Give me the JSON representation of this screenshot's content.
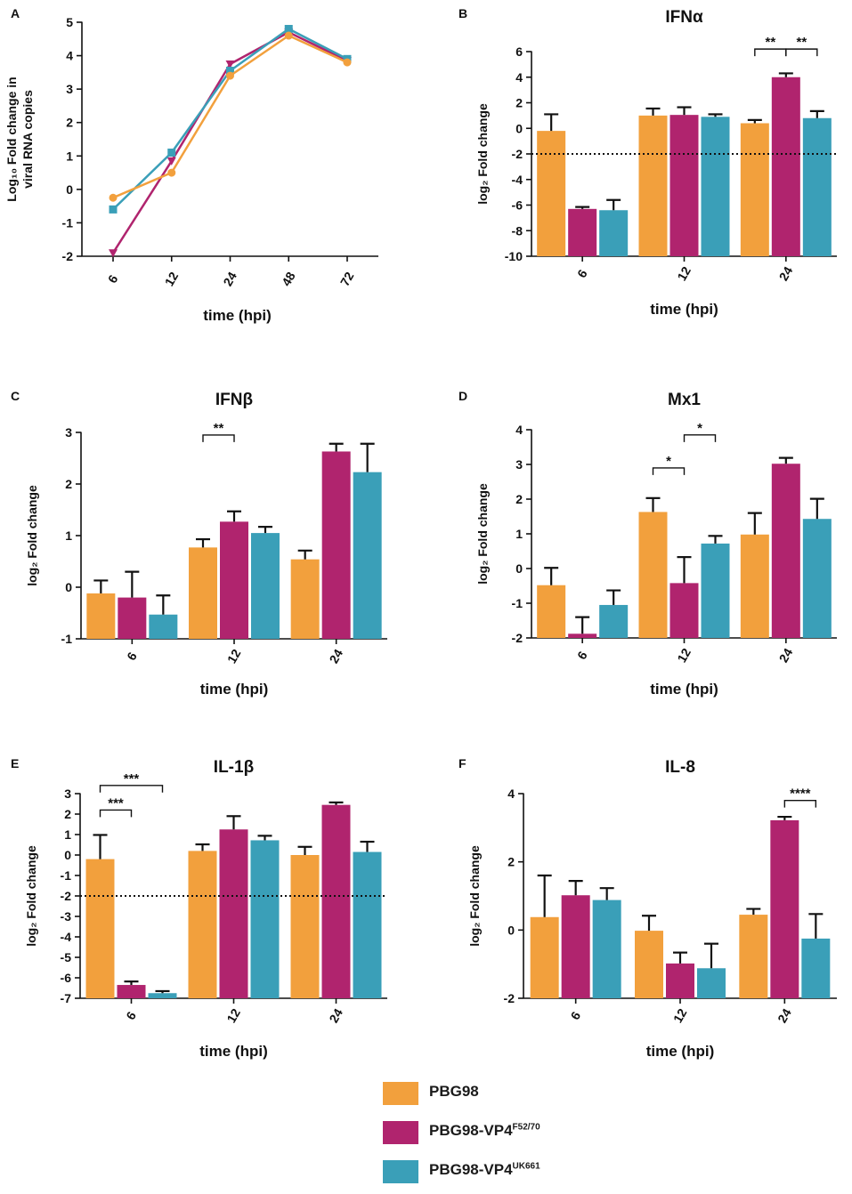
{
  "colors": {
    "PBG98": "#F2A03D",
    "PBG98-VP4F52/70": "#B0246E",
    "PBG98-VP4UK661": "#3A9FB8"
  },
  "legend": {
    "items": [
      {
        "series": "PBG98",
        "base": "PBG98",
        "sup": ""
      },
      {
        "series": "PBG98-VP4F52/70",
        "base": "PBG98-VP4",
        "sup": "F52/70"
      },
      {
        "series": "PBG98-VP4UK661",
        "base": "PBG98-VP4",
        "sup": "UK661"
      }
    ]
  },
  "chart_data": [
    {
      "panel": "A",
      "type": "line",
      "title": "",
      "xlabel": "time (hpi)",
      "ylabel_line1": "Log₁₀ Fold change in",
      "ylabel_line2": "viral RNA copies",
      "categories": [
        "6",
        "12",
        "24",
        "48",
        "72"
      ],
      "ylim": [
        -2,
        5
      ],
      "yticks": [
        -2,
        -1,
        0,
        1,
        2,
        3,
        4,
        5
      ],
      "series": [
        {
          "name": "PBG98-VP4F52/70",
          "marker": "triangle-down",
          "values": [
            -1.9,
            0.85,
            3.75,
            4.7,
            3.85
          ]
        },
        {
          "name": "PBG98-VP4UK661",
          "marker": "square",
          "values": [
            -0.6,
            1.1,
            3.55,
            4.8,
            3.9
          ]
        },
        {
          "name": "PBG98",
          "marker": "circle",
          "values": [
            -0.25,
            0.5,
            3.4,
            4.6,
            3.8
          ]
        }
      ]
    },
    {
      "panel": "B",
      "type": "bar",
      "title": "IFNα",
      "xlabel": "time (hpi)",
      "ylabel": "log₂ Fold change",
      "categories": [
        "6",
        "12",
        "24"
      ],
      "ylim": [
        -10,
        6
      ],
      "yticks": [
        -10,
        -8,
        -6,
        -4,
        -2,
        0,
        2,
        4,
        6
      ],
      "dotted_line": -2,
      "series": [
        {
          "name": "PBG98",
          "values": [
            -0.2,
            1.0,
            0.4
          ],
          "errors": [
            1.3,
            0.55,
            0.25
          ]
        },
        {
          "name": "PBG98-VP4F52/70",
          "values": [
            -6.3,
            1.05,
            4.0
          ],
          "errors": [
            0.15,
            0.6,
            0.3
          ]
        },
        {
          "name": "PBG98-VP4UK661",
          "values": [
            -6.4,
            0.9,
            0.8
          ],
          "errors": [
            0.8,
            0.2,
            0.55
          ]
        }
      ],
      "significance": [
        {
          "group": 2,
          "from": 0,
          "to": 1,
          "label": "**",
          "y": 6.2
        },
        {
          "group": 2,
          "from": 1,
          "to": 2,
          "label": "**",
          "y": 6.2
        }
      ]
    },
    {
      "panel": "C",
      "type": "bar",
      "title": "IFNβ",
      "xlabel": "time (hpi)",
      "ylabel": "log₂ Fold change",
      "categories": [
        "6",
        "12",
        "24"
      ],
      "ylim": [
        -1,
        3
      ],
      "yticks": [
        -1,
        0,
        1,
        2,
        3
      ],
      "series": [
        {
          "name": "PBG98",
          "values": [
            -0.12,
            0.77,
            0.54
          ],
          "errors": [
            0.25,
            0.16,
            0.17
          ]
        },
        {
          "name": "PBG98-VP4F52/70",
          "values": [
            -0.2,
            1.27,
            2.63
          ],
          "errors": [
            0.5,
            0.2,
            0.15
          ]
        },
        {
          "name": "PBG98-VP4UK661",
          "values": [
            -0.53,
            1.05,
            2.23
          ],
          "errors": [
            0.37,
            0.12,
            0.55
          ]
        }
      ],
      "significance": [
        {
          "group": 1,
          "from": 0,
          "to": 1,
          "label": "**",
          "y": 2.95
        }
      ]
    },
    {
      "panel": "D",
      "type": "bar",
      "title": "Mx1",
      "xlabel": "time (hpi)",
      "ylabel": "log₂ Fold change",
      "categories": [
        "6",
        "12",
        "24"
      ],
      "ylim": [
        -2,
        4
      ],
      "yticks": [
        -2,
        -1,
        0,
        1,
        2,
        3,
        4
      ],
      "series": [
        {
          "name": "PBG98",
          "values": [
            -0.48,
            1.63,
            0.98
          ],
          "errors": [
            0.5,
            0.4,
            0.62
          ]
        },
        {
          "name": "PBG98-VP4F52/70",
          "values": [
            -1.88,
            -0.42,
            3.02
          ],
          "errors": [
            0.48,
            0.75,
            0.17
          ]
        },
        {
          "name": "PBG98-VP4UK661",
          "values": [
            -1.05,
            0.72,
            1.43
          ],
          "errors": [
            0.42,
            0.22,
            0.58
          ]
        }
      ],
      "significance": [
        {
          "group": 1,
          "from": 0,
          "to": 1,
          "label": "*",
          "y": 2.9
        },
        {
          "group": 1,
          "from": 1,
          "to": 2,
          "label": "*",
          "y": 3.85
        }
      ]
    },
    {
      "panel": "E",
      "type": "bar",
      "title": "IL-1β",
      "xlabel": "time (hpi)",
      "ylabel": "log₂ Fold change",
      "categories": [
        "6",
        "12",
        "24"
      ],
      "ylim": [
        -7,
        3
      ],
      "yticks": [
        -7,
        -6,
        -5,
        -4,
        -3,
        -2,
        -1,
        0,
        1,
        2,
        3
      ],
      "dotted_line": -2,
      "series": [
        {
          "name": "PBG98",
          "values": [
            -0.2,
            0.2,
            0.0
          ],
          "errors": [
            1.18,
            0.32,
            0.4
          ]
        },
        {
          "name": "PBG98-VP4F52/70",
          "values": [
            -6.35,
            1.25,
            2.45
          ],
          "errors": [
            0.17,
            0.65,
            0.12
          ]
        },
        {
          "name": "PBG98-VP4UK661",
          "values": [
            -6.75,
            0.72,
            0.15
          ],
          "errors": [
            0.1,
            0.22,
            0.5
          ]
        }
      ],
      "significance": [
        {
          "group": 0,
          "from": 0,
          "to": 1,
          "label": "***",
          "y": 2.2
        },
        {
          "group": 0,
          "from": 0,
          "to": 2,
          "label": "***",
          "y": 3.4
        }
      ]
    },
    {
      "panel": "F",
      "type": "bar",
      "title": "IL-8",
      "xlabel": "time (hpi)",
      "ylabel": "log₂ Fold change",
      "categories": [
        "6",
        "12",
        "24"
      ],
      "ylim": [
        -2,
        4
      ],
      "yticks": [
        -2,
        0,
        2,
        4
      ],
      "series": [
        {
          "name": "PBG98",
          "values": [
            0.38,
            -0.02,
            0.45
          ],
          "errors": [
            1.22,
            0.44,
            0.17
          ]
        },
        {
          "name": "PBG98-VP4F52/70",
          "values": [
            1.02,
            -0.98,
            3.22
          ],
          "errors": [
            0.42,
            0.32,
            0.1
          ]
        },
        {
          "name": "PBG98-VP4UK661",
          "values": [
            0.88,
            -1.12,
            -0.25
          ],
          "errors": [
            0.35,
            0.72,
            0.72
          ]
        }
      ],
      "significance": [
        {
          "group": 2,
          "from": 1,
          "to": 2,
          "label": "****",
          "y": 3.8
        }
      ]
    }
  ]
}
